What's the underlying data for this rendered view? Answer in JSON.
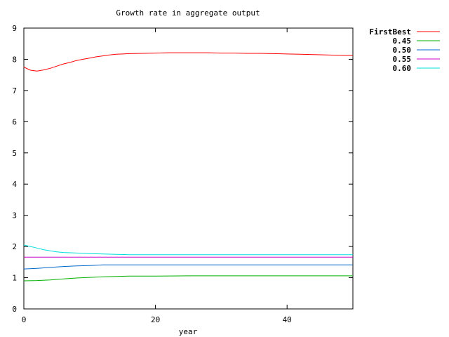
{
  "chart_data": {
    "type": "line",
    "title": "Growth rate in aggregate output",
    "xlabel": "year",
    "ylabel": "",
    "xlim": [
      0,
      50
    ],
    "ylim": [
      0,
      9
    ],
    "xticks": [
      0,
      20,
      40
    ],
    "yticks": [
      0,
      1,
      2,
      3,
      4,
      5,
      6,
      7,
      8,
      9
    ],
    "grid": false,
    "legend_position": "top-right, outside plot",
    "series": [
      {
        "name": "FirstBest",
        "color": "#ff0000",
        "x": [
          0,
          1,
          2,
          3,
          4,
          5,
          6,
          7,
          8,
          9,
          10,
          11,
          12,
          13,
          14,
          15,
          16,
          18,
          20,
          22,
          24,
          26,
          28,
          30,
          32,
          34,
          36,
          38,
          40,
          42,
          44,
          46,
          48,
          50
        ],
        "y": [
          7.75,
          7.65,
          7.62,
          7.66,
          7.71,
          7.78,
          7.85,
          7.9,
          7.96,
          8.0,
          8.04,
          8.08,
          8.11,
          8.14,
          8.16,
          8.17,
          8.18,
          8.19,
          8.2,
          8.21,
          8.21,
          8.21,
          8.21,
          8.2,
          8.2,
          8.19,
          8.19,
          8.18,
          8.17,
          8.16,
          8.15,
          8.14,
          8.13,
          8.12
        ]
      },
      {
        "name": "0.45",
        "color": "#00b000",
        "x": [
          0,
          2,
          4,
          6,
          8,
          10,
          12,
          14,
          16,
          20,
          25,
          30,
          35,
          40,
          45,
          50
        ],
        "y": [
          0.9,
          0.91,
          0.93,
          0.96,
          0.99,
          1.01,
          1.03,
          1.04,
          1.05,
          1.05,
          1.06,
          1.06,
          1.06,
          1.06,
          1.06,
          1.06
        ]
      },
      {
        "name": "0.50",
        "color": "#0066cc",
        "x": [
          0,
          2,
          4,
          6,
          8,
          10,
          12,
          14,
          16,
          20,
          25,
          30,
          35,
          40,
          45,
          50
        ],
        "y": [
          1.28,
          1.3,
          1.33,
          1.36,
          1.38,
          1.39,
          1.41,
          1.41,
          1.41,
          1.41,
          1.41,
          1.41,
          1.41,
          1.41,
          1.41,
          1.41
        ]
      },
      {
        "name": "0.55",
        "color": "#cc00cc",
        "x": [
          0,
          10,
          20,
          30,
          40,
          50
        ],
        "y": [
          1.66,
          1.66,
          1.66,
          1.66,
          1.66,
          1.66
        ]
      },
      {
        "name": "0.60",
        "color": "#00dddd",
        "x": [
          0,
          1,
          2,
          3,
          4,
          5,
          6,
          8,
          10,
          12,
          14,
          16,
          20,
          25,
          30,
          35,
          40,
          45,
          50
        ],
        "y": [
          2.05,
          2.0,
          1.95,
          1.9,
          1.86,
          1.83,
          1.81,
          1.79,
          1.77,
          1.76,
          1.75,
          1.74,
          1.74,
          1.74,
          1.74,
          1.74,
          1.74,
          1.74,
          1.74
        ]
      }
    ]
  }
}
